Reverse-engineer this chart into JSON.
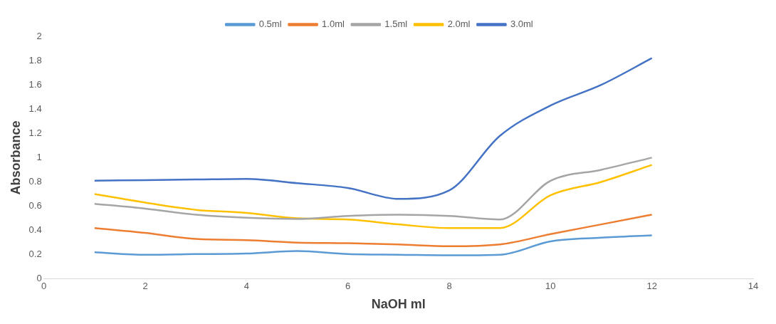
{
  "chart_data": {
    "type": "line",
    "xlabel": "NaOH ml",
    "ylabel": "Absorbance",
    "x": [
      1,
      2,
      3,
      4,
      5,
      6,
      7,
      8,
      9,
      10,
      11,
      12
    ],
    "series": [
      {
        "name": "0.5ml",
        "color": "#5b9bd5",
        "values": [
          0.22,
          0.2,
          0.205,
          0.21,
          0.23,
          0.205,
          0.2,
          0.195,
          0.2,
          0.31,
          0.34,
          0.36
        ]
      },
      {
        "name": "1.0ml",
        "color": "#ed7d31",
        "values": [
          0.42,
          0.38,
          0.33,
          0.32,
          0.3,
          0.295,
          0.285,
          0.27,
          0.285,
          0.37,
          0.45,
          0.53
        ]
      },
      {
        "name": "1.5ml",
        "color": "#a5a5a5",
        "values": [
          0.62,
          0.58,
          0.53,
          0.505,
          0.495,
          0.52,
          0.53,
          0.52,
          0.49,
          0.81,
          0.9,
          1.0
        ]
      },
      {
        "name": "2.0ml",
        "color": "#ffc000",
        "values": [
          0.7,
          0.63,
          0.57,
          0.545,
          0.5,
          0.49,
          0.45,
          0.42,
          0.42,
          0.69,
          0.8,
          0.94
        ]
      },
      {
        "name": "3.0ml",
        "color": "#4472c4",
        "values": [
          0.81,
          0.815,
          0.82,
          0.825,
          0.79,
          0.75,
          0.66,
          0.73,
          1.18,
          1.43,
          1.6,
          1.82
        ]
      }
    ],
    "xlim": [
      0,
      14
    ],
    "xticks": [
      0,
      2,
      4,
      6,
      8,
      10,
      12,
      14
    ],
    "ylim": [
      0,
      2
    ],
    "yticks": [
      0,
      0.2,
      0.4,
      0.6,
      0.8,
      1,
      1.2,
      1.4,
      1.6,
      1.8,
      2
    ],
    "legend": "top",
    "marker": "none",
    "line_style": "solid",
    "grid": false
  }
}
